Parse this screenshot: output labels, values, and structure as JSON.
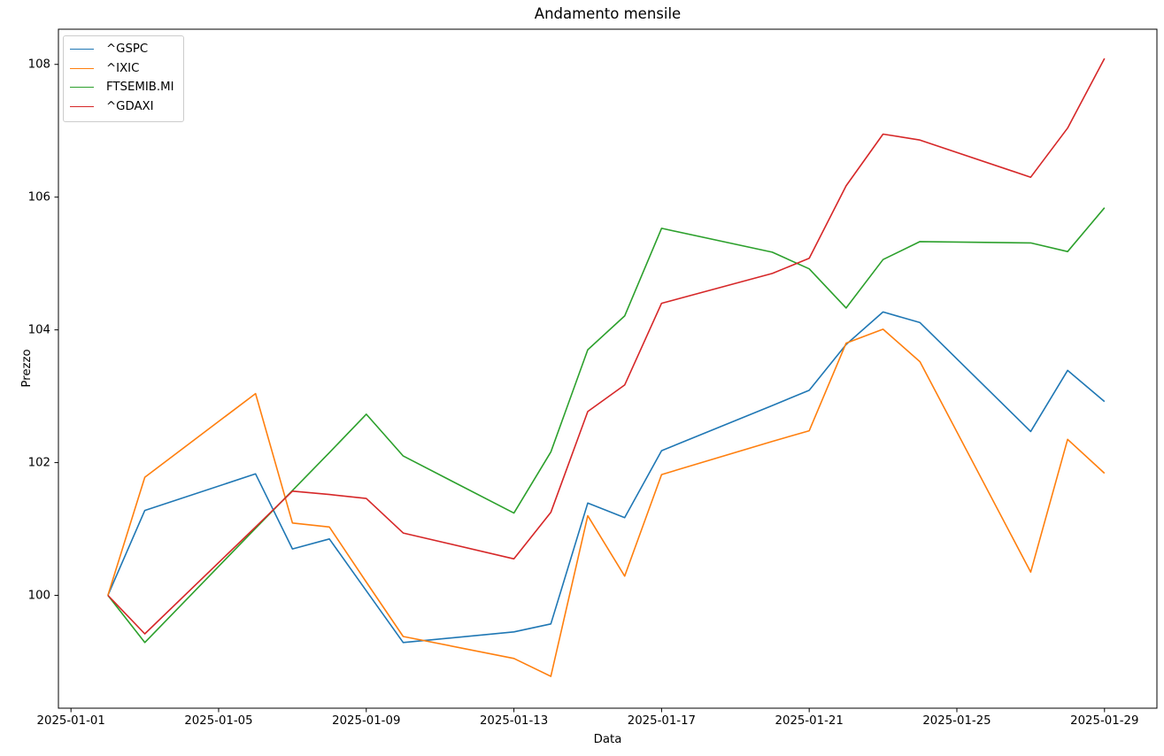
{
  "chart_data": {
    "type": "line",
    "title": "Andamento mensile",
    "xlabel": "Data",
    "ylabel": "Prezzo",
    "grid": false,
    "legend_position": "upper-left",
    "x_dates": [
      "2025-01-02",
      "2025-01-03",
      "2025-01-06",
      "2025-01-07",
      "2025-01-08",
      "2025-01-09",
      "2025-01-10",
      "2025-01-13",
      "2025-01-14",
      "2025-01-15",
      "2025-01-16",
      "2025-01-17",
      "2025-01-20",
      "2025-01-21",
      "2025-01-22",
      "2025-01-23",
      "2025-01-24",
      "2025-01-27",
      "2025-01-28",
      "2025-01-29"
    ],
    "series": [
      {
        "name": "^GSPC",
        "color": "#1f77b4",
        "values": [
          100.0,
          101.28,
          101.83,
          100.7,
          100.85,
          100.07,
          99.29,
          99.45,
          99.57,
          101.39,
          101.17,
          102.18,
          102.86,
          103.09,
          103.78,
          104.27,
          104.11,
          102.47,
          103.39,
          102.92
        ]
      },
      {
        "name": "^IXIC",
        "color": "#ff7f0e",
        "values": [
          100.0,
          101.78,
          103.04,
          101.09,
          101.03,
          100.2,
          99.38,
          99.05,
          98.78,
          101.2,
          100.29,
          101.82,
          102.32,
          102.48,
          103.8,
          104.01,
          103.52,
          100.35,
          102.35,
          101.84
        ]
      },
      {
        "name": "FTSEMIB.MI",
        "color": "#2ca02c",
        "values": [
          100.0,
          99.29,
          101.01,
          101.58,
          102.15,
          102.73,
          102.1,
          101.24,
          102.16,
          103.7,
          104.21,
          105.53,
          105.17,
          104.92,
          104.33,
          105.06,
          105.33,
          105.31,
          105.18,
          105.84
        ]
      },
      {
        "name": "^GDAXI",
        "color": "#d62728",
        "values": [
          100.0,
          99.42,
          101.03,
          101.57,
          101.52,
          101.46,
          100.94,
          100.55,
          101.25,
          102.77,
          103.17,
          104.4,
          104.85,
          105.08,
          106.17,
          106.95,
          106.86,
          106.3,
          107.04,
          108.09
        ]
      }
    ],
    "x_ticks": [
      "2025-01-01",
      "2025-01-05",
      "2025-01-09",
      "2025-01-13",
      "2025-01-17",
      "2025-01-21",
      "2025-01-25",
      "2025-01-29"
    ],
    "y_ticks": [
      100,
      102,
      104,
      106,
      108
    ],
    "ylim": [
      98.3,
      108.53
    ],
    "xlim_days": [
      0.66,
      30.42
    ],
    "axis_color": "#000000"
  }
}
